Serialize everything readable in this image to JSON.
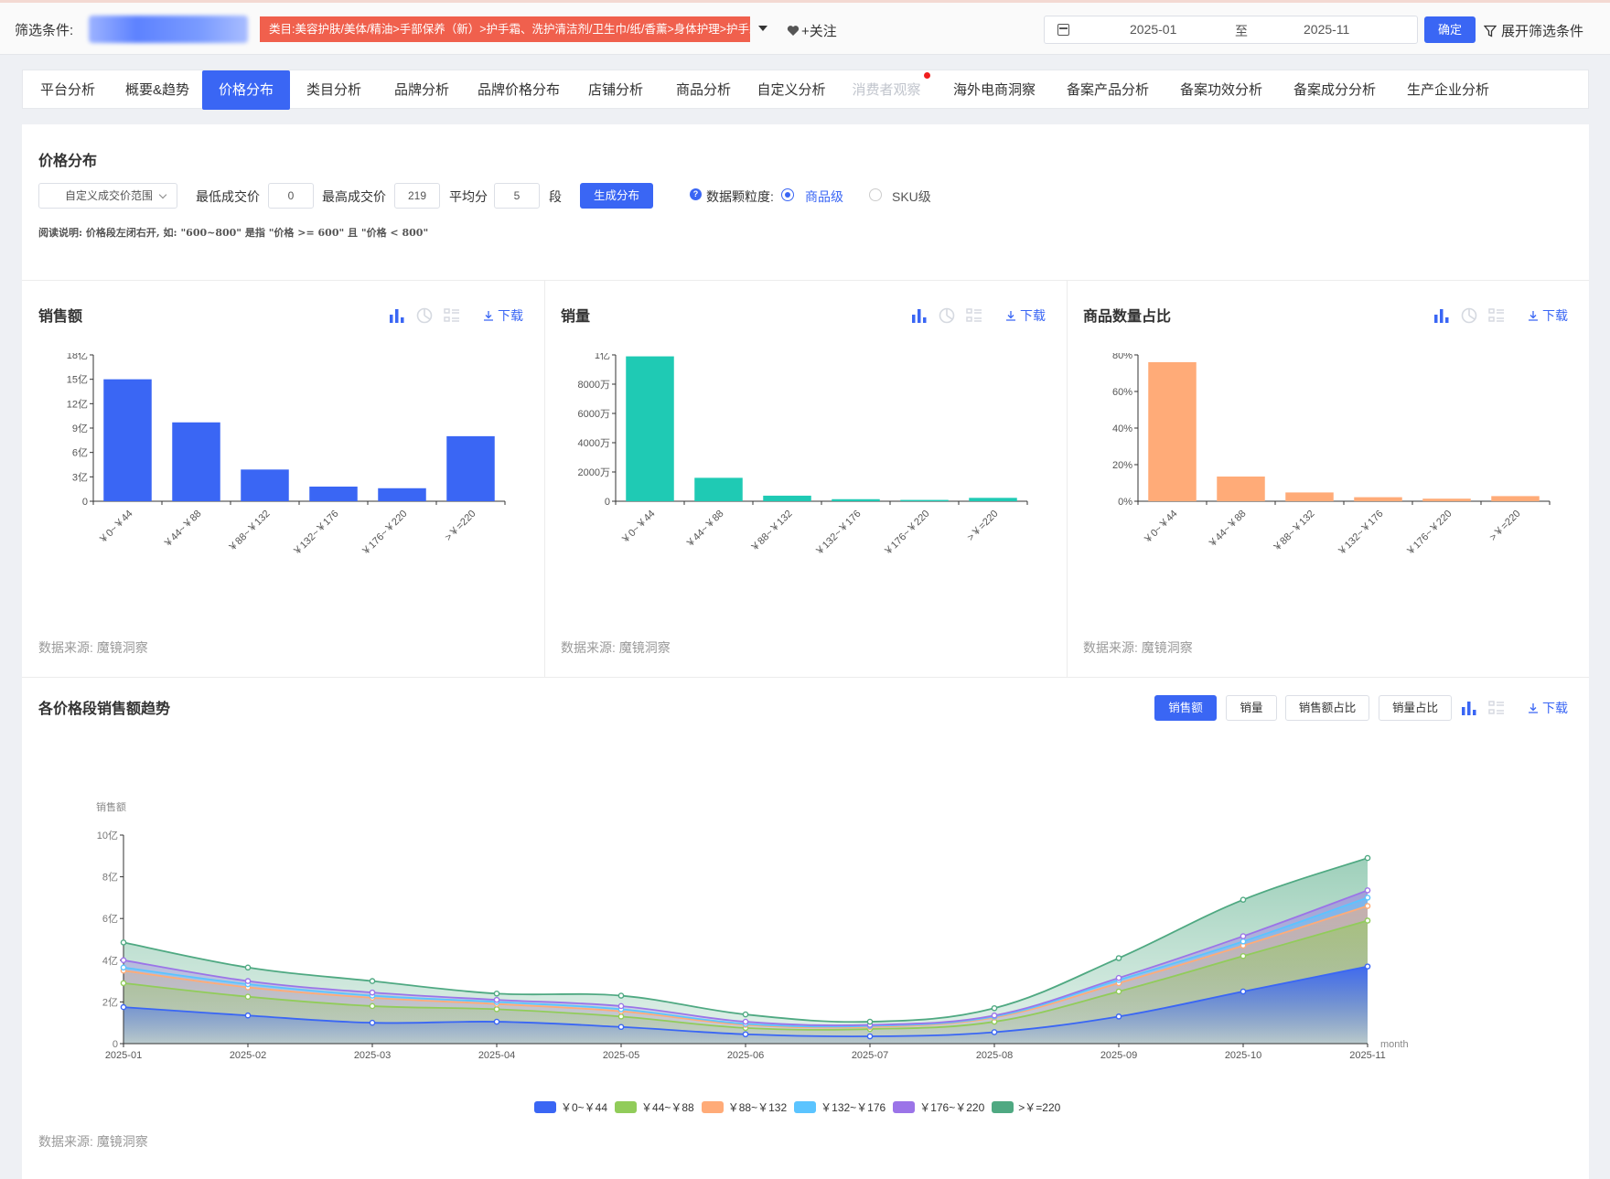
{
  "filter": {
    "label": "筛选条件:",
    "category_tag": "类目:美容护肤/美体/精油>手部保养（新）>护手霜、洗护清洁剂/卫生巾/纸/香薰>身体护理>护手霜",
    "follow": "+关注",
    "date_from": "2025-01",
    "date_to_label": "至",
    "date_to": "2025-11",
    "confirm": "确定",
    "expand": "展开筛选条件"
  },
  "tabs": [
    {
      "label": "平台分析",
      "state": "normal"
    },
    {
      "label": "概要&趋势",
      "state": "normal"
    },
    {
      "label": "价格分布",
      "state": "active"
    },
    {
      "label": "类目分析",
      "state": "normal"
    },
    {
      "label": "品牌分析",
      "state": "normal"
    },
    {
      "label": "品牌价格分布",
      "state": "normal"
    },
    {
      "label": "店铺分析",
      "state": "normal"
    },
    {
      "label": "商品分析",
      "state": "normal"
    },
    {
      "label": "自定义分析",
      "state": "normal"
    },
    {
      "label": "消费者观察",
      "state": "disabled"
    },
    {
      "label": "海外电商洞察",
      "state": "normal"
    },
    {
      "label": "备案产品分析",
      "state": "normal"
    },
    {
      "label": "备案功效分析",
      "state": "normal"
    },
    {
      "label": "备案成分分析",
      "state": "normal"
    },
    {
      "label": "生产企业分析",
      "state": "normal"
    }
  ],
  "price": {
    "title": "价格分布",
    "range_select": "自定义成交价范围",
    "min_label": "最低成交价",
    "min_value": "0",
    "max_label": "最高成交价",
    "max_value": "219",
    "avg_label": "平均分",
    "avg_value": "5",
    "seg_label": "段",
    "gen_button": "生成分布",
    "granularity_label": "数据颗粒度:",
    "opt_product": "商品级",
    "opt_sku": "SKU级",
    "note": "阅读说明: 价格段左闭右开, 如: \"600~800\" 是指 \"价格 >= 600\" 且 \"价格 < 800\""
  },
  "common": {
    "download": "下载",
    "source": "数据来源: 魔镜洞察"
  },
  "colors": {
    "accent": "#3a66f4",
    "bar_sales": "#3a66f4",
    "bar_volume": "#1fcab4",
    "bar_share": "#ffab78",
    "series": [
      "#3a66f4",
      "#91cc5a",
      "#ffab78",
      "#5bc4ff",
      "#9b74e8",
      "#4fa982"
    ]
  },
  "chart_data": [
    {
      "type": "bar",
      "title": "销售额",
      "categories": [
        "￥0~￥44",
        "￥44~￥88",
        "￥88~￥132",
        "￥132~￥176",
        "￥176~￥220",
        ">￥=220"
      ],
      "values": [
        15.0,
        9.7,
        3.9,
        1.8,
        1.6,
        8.0
      ],
      "unit": "亿",
      "yticks": [
        "0",
        "3亿",
        "6亿",
        "9亿",
        "12亿",
        "15亿",
        "18亿"
      ],
      "ylim": [
        0,
        18
      ]
    },
    {
      "type": "bar",
      "title": "销量",
      "categories": [
        "￥0~￥44",
        "￥44~￥88",
        "￥88~￥132",
        "￥132~￥176",
        "￥176~￥220",
        ">￥=220"
      ],
      "values": [
        9900,
        1600,
        380,
        140,
        90,
        230
      ],
      "unit": "万",
      "yticks": [
        "0",
        "2000万",
        "4000万",
        "6000万",
        "8000万",
        "1亿"
      ],
      "ylim": [
        0,
        10000
      ]
    },
    {
      "type": "bar",
      "title": "商品数量占比",
      "categories": [
        "￥0~￥44",
        "￥44~￥88",
        "￥88~￥132",
        "￥132~￥176",
        "￥176~￥220",
        ">￥=220"
      ],
      "values": [
        76,
        13.5,
        4.8,
        2.2,
        1.4,
        2.8
      ],
      "unit": "%",
      "yticks": [
        "0%",
        "20%",
        "40%",
        "60%",
        "80%"
      ],
      "ylim": [
        0,
        80
      ]
    },
    {
      "type": "area",
      "title": "各价格段销售额趋势",
      "ylabel": "销售额",
      "xlabel": "month",
      "x": [
        "2025-01",
        "2025-02",
        "2025-03",
        "2025-04",
        "2025-05",
        "2025-06",
        "2025-07",
        "2025-08",
        "2025-09",
        "2025-10",
        "2025-11"
      ],
      "yticks": [
        "0",
        "2亿",
        "4亿",
        "6亿",
        "8亿",
        "10亿"
      ],
      "ylim": [
        0,
        10
      ],
      "stacked": true,
      "series": [
        {
          "name": "￥0~￥44",
          "values": [
            1.75,
            1.35,
            1.0,
            1.05,
            0.8,
            0.45,
            0.35,
            0.55,
            1.3,
            2.5,
            3.7
          ]
        },
        {
          "name": "￥44~￥88",
          "values": [
            1.15,
            0.9,
            0.8,
            0.6,
            0.5,
            0.3,
            0.35,
            0.5,
            1.2,
            1.7,
            2.2
          ]
        },
        {
          "name": "￥88~￥132",
          "values": [
            0.6,
            0.45,
            0.4,
            0.25,
            0.25,
            0.15,
            0.1,
            0.2,
            0.4,
            0.5,
            0.7
          ]
        },
        {
          "name": "￥132~￥176",
          "values": [
            0.15,
            0.15,
            0.1,
            0.1,
            0.1,
            0.05,
            0.05,
            0.05,
            0.15,
            0.2,
            0.4
          ]
        },
        {
          "name": "￥176~￥220",
          "values": [
            0.35,
            0.15,
            0.15,
            0.1,
            0.15,
            0.1,
            0.05,
            0.05,
            0.1,
            0.25,
            0.35
          ]
        },
        {
          "name": ">￥=220",
          "values": [
            0.85,
            0.65,
            0.55,
            0.3,
            0.5,
            0.35,
            0.15,
            0.35,
            0.95,
            1.75,
            1.55
          ]
        }
      ]
    }
  ],
  "trend": {
    "title": "各价格段销售额趋势",
    "buttons": [
      "销售额",
      "销量",
      "销售额占比",
      "销量占比"
    ],
    "active_button": 0
  }
}
